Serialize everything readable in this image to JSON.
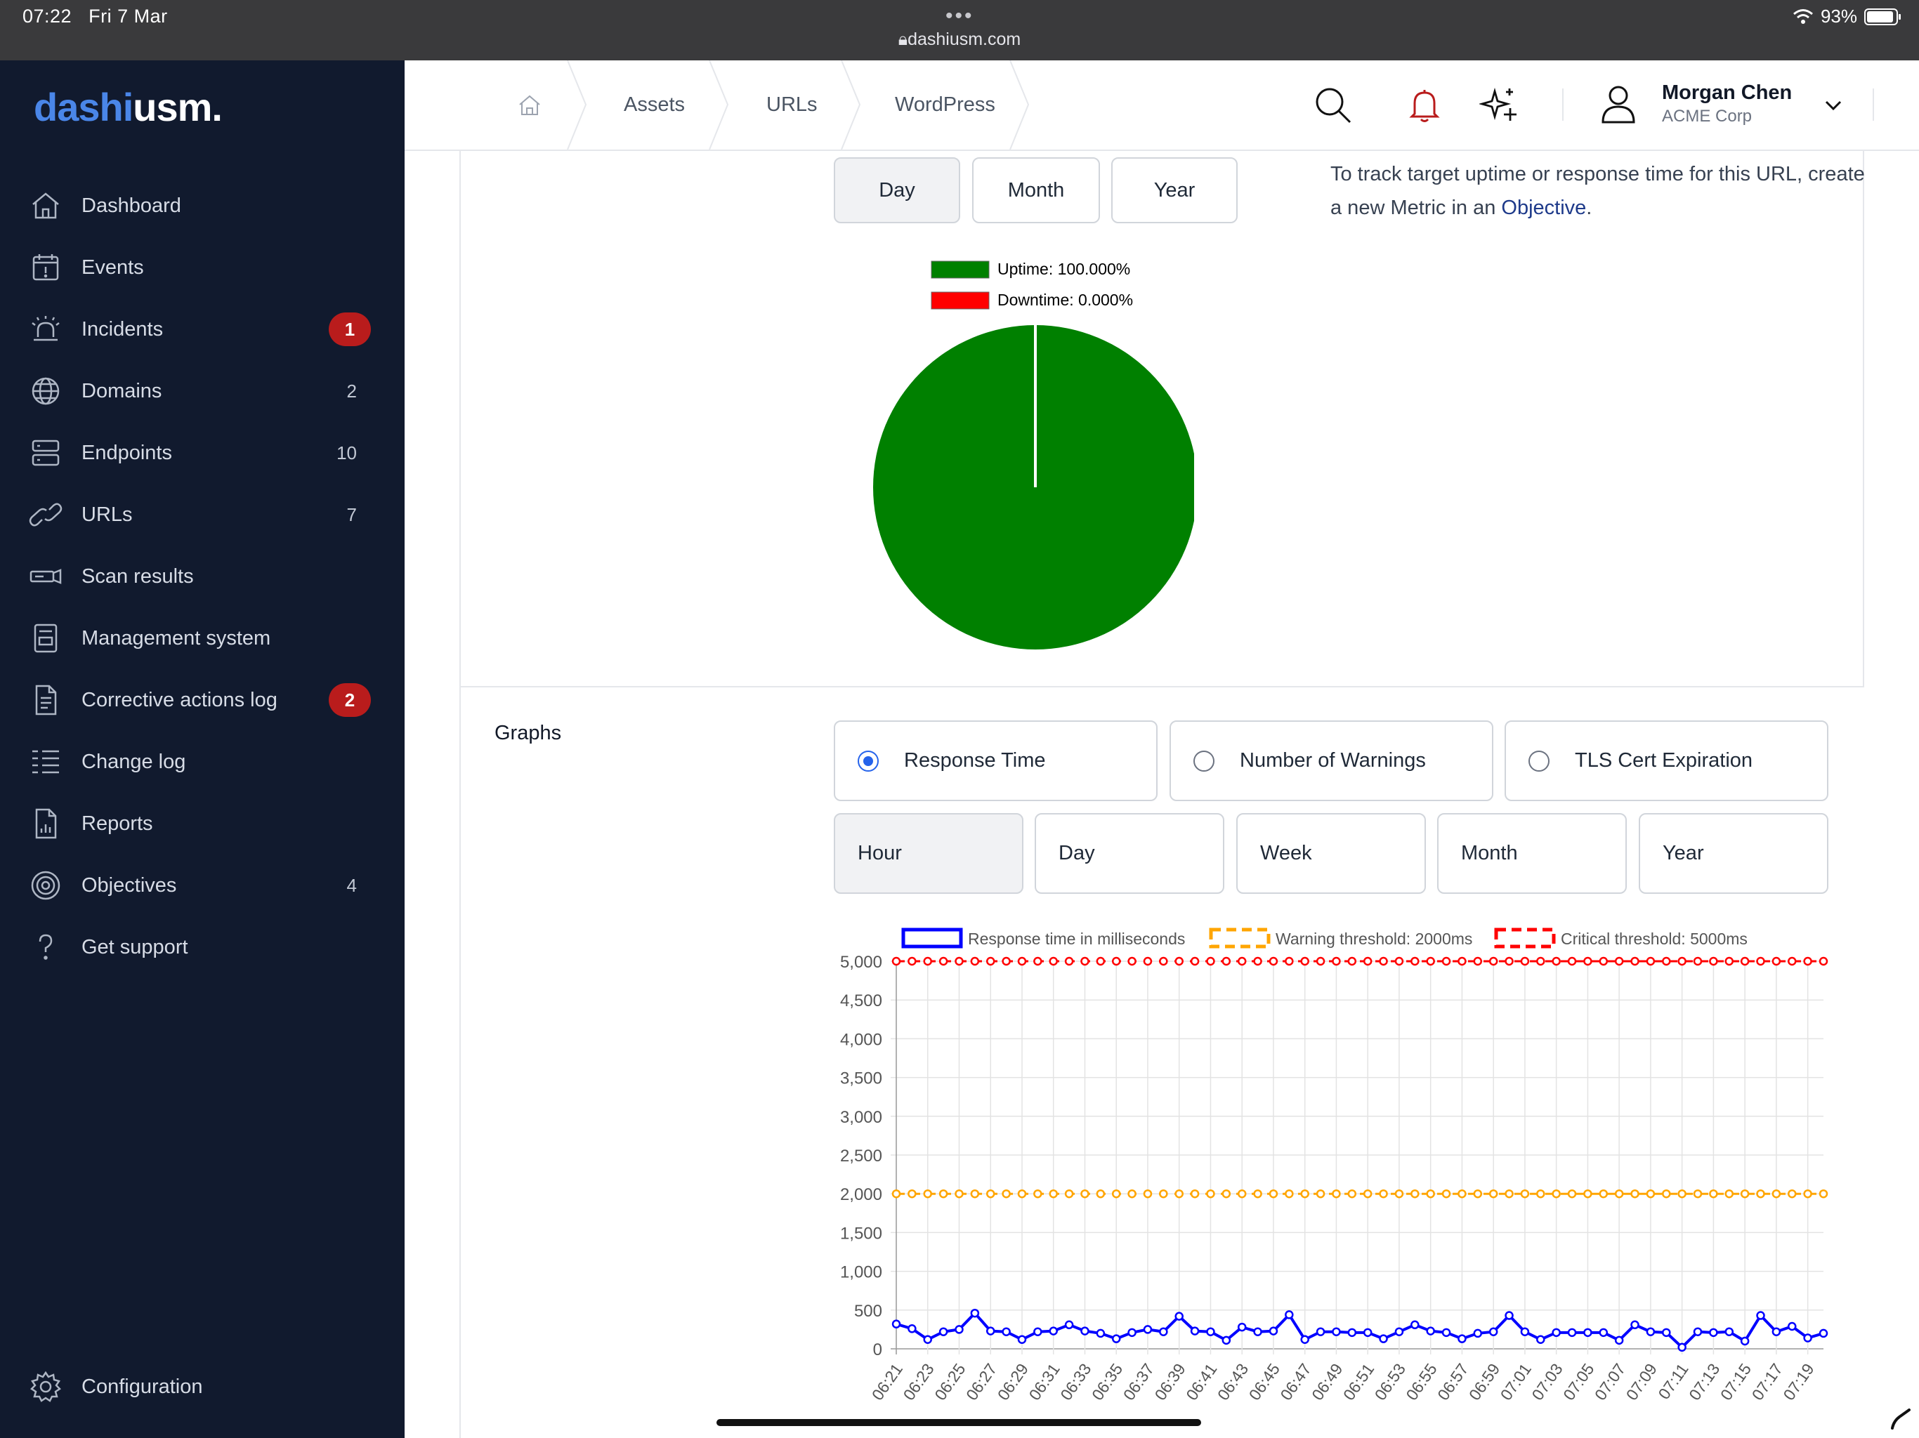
{
  "status_bar": {
    "time": "07:22",
    "date": "Fri 7 Mar",
    "url": "dashiusm.com",
    "battery": "93%"
  },
  "logo": {
    "part1": "dashi",
    "part2": "usm."
  },
  "sidebar": {
    "items": [
      {
        "label": "Dashboard",
        "icon": "home-icon"
      },
      {
        "label": "Events",
        "icon": "calendar-alert-icon"
      },
      {
        "label": "Incidents",
        "icon": "siren-icon",
        "badge": "1"
      },
      {
        "label": "Domains",
        "icon": "globe-icon",
        "count": "2"
      },
      {
        "label": "Endpoints",
        "icon": "server-icon",
        "count": "10"
      },
      {
        "label": "URLs",
        "icon": "link-icon",
        "count": "7"
      },
      {
        "label": "Scan results",
        "icon": "scanner-icon"
      },
      {
        "label": "Management system",
        "icon": "management-icon"
      },
      {
        "label": "Corrective actions log",
        "icon": "document-icon",
        "badge": "2"
      },
      {
        "label": "Change log",
        "icon": "list-icon"
      },
      {
        "label": "Reports",
        "icon": "report-icon"
      },
      {
        "label": "Objectives",
        "icon": "target-icon",
        "count": "4"
      },
      {
        "label": "Get support",
        "icon": "question-icon"
      }
    ],
    "configuration": "Configuration"
  },
  "breadcrumb": [
    "Assets",
    "URLs",
    "WordPress"
  ],
  "user": {
    "name": "Morgan Chen",
    "org": "ACME Corp"
  },
  "uptime": {
    "periods": [
      "Day",
      "Month",
      "Year"
    ],
    "active_period": "Day",
    "legend": [
      "Uptime: 100.000%",
      "Downtime: 0.000%"
    ],
    "colors": {
      "uptime": "#008000",
      "downtime": "#ff0000"
    }
  },
  "info": {
    "text": "To track target uptime or response time for this URL, create a new Metric in an",
    "link": "Objective",
    "suffix": "."
  },
  "graphs": {
    "title": "Graphs",
    "options": [
      "Response Time",
      "Number of Warnings",
      "TLS Cert Expiration"
    ],
    "selected_option": "Response Time",
    "periods": [
      "Hour",
      "Day",
      "Week",
      "Month",
      "Year"
    ],
    "active_period": "Hour"
  },
  "chart_data": [
    {
      "type": "pie",
      "labels": [
        "Uptime: 100.000%",
        "Downtime: 0.000%"
      ],
      "values": [
        100,
        0
      ],
      "colors": [
        "#008000",
        "#ff0000"
      ]
    },
    {
      "type": "line",
      "x": [
        "06:21",
        "06:22",
        "06:23",
        "06:24",
        "06:25",
        "06:26",
        "06:27",
        "06:28",
        "06:29",
        "06:30",
        "06:31",
        "06:32",
        "06:33",
        "06:34",
        "06:35",
        "06:36",
        "06:37",
        "06:38",
        "06:39",
        "06:40",
        "06:41",
        "06:42",
        "06:43",
        "06:44",
        "06:45",
        "06:46",
        "06:47",
        "06:48",
        "06:49",
        "06:50",
        "06:51",
        "06:52",
        "06:53",
        "06:54",
        "06:55",
        "06:56",
        "06:57",
        "06:58",
        "06:59",
        "07:00",
        "07:01",
        "07:02",
        "07:03",
        "07:04",
        "07:05",
        "07:06",
        "07:07",
        "07:08",
        "07:09",
        "07:10",
        "07:11",
        "07:12",
        "07:13",
        "07:14",
        "07:15",
        "07:16",
        "07:17",
        "07:18",
        "07:19",
        "07:20"
      ],
      "xtick_labels": [
        "06:21",
        "06:23",
        "06:25",
        "06:27",
        "06:29",
        "06:31",
        "06:33",
        "06:35",
        "06:37",
        "06:39",
        "06:41",
        "06:43",
        "06:45",
        "06:47",
        "06:49",
        "06:51",
        "06:53",
        "06:55",
        "06:57",
        "06:59",
        "07:01",
        "07:03",
        "07:05",
        "07:07",
        "07:09",
        "07:11",
        "07:13",
        "07:15",
        "07:17",
        "07:19"
      ],
      "series": [
        {
          "name": "Response time in milliseconds",
          "color": "#0000ff",
          "dashed": false,
          "values": [
            320,
            260,
            120,
            220,
            250,
            460,
            230,
            220,
            120,
            220,
            230,
            310,
            230,
            200,
            130,
            210,
            250,
            220,
            420,
            230,
            220,
            110,
            280,
            220,
            230,
            440,
            120,
            220,
            220,
            210,
            210,
            130,
            220,
            310,
            230,
            210,
            130,
            200,
            220,
            430,
            220,
            120,
            210,
            210,
            210,
            210,
            110,
            310,
            220,
            210,
            20,
            220,
            210,
            220,
            100,
            430,
            220,
            290,
            140,
            200
          ]
        },
        {
          "name": "Warning threshold: 2000ms",
          "color": "#ffa500",
          "dashed": true,
          "constant": 2000
        },
        {
          "name": "Critical threshold: 5000ms",
          "color": "#ff0000",
          "dashed": true,
          "constant": 5000
        }
      ],
      "ylim": [
        0,
        5000
      ],
      "yticks": [
        "0",
        "500",
        "1,000",
        "1,500",
        "2,000",
        "2,500",
        "3,000",
        "3,500",
        "4,000",
        "4,500",
        "5,000"
      ],
      "grid": true,
      "legend": "top"
    }
  ]
}
